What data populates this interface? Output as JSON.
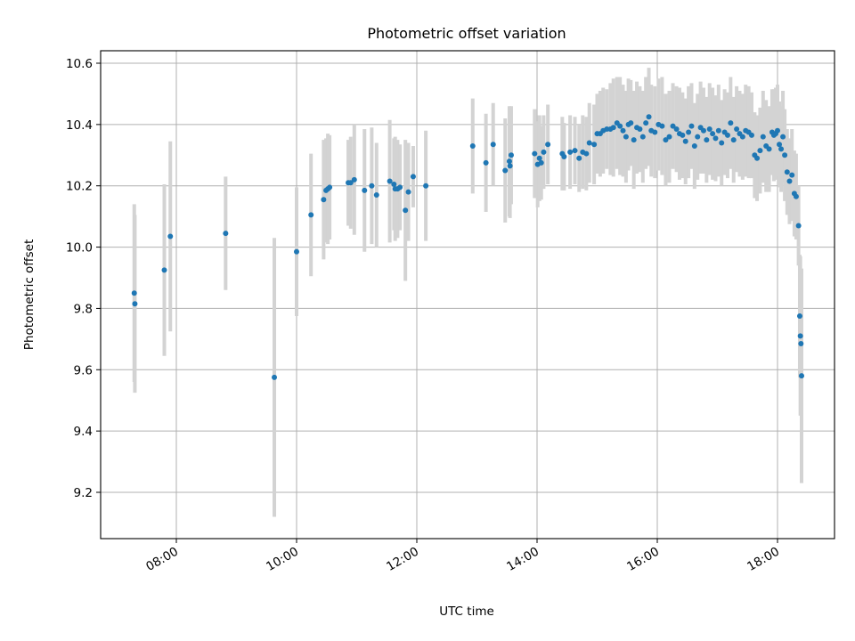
{
  "chart_data": {
    "type": "scatter",
    "title": "Photometric offset variation",
    "xlabel": "UTC time",
    "ylabel": "Photometric offset",
    "x_unit": "hours UTC",
    "xlim": [
      7.0,
      19.0
    ],
    "ylim": [
      9.05,
      10.64
    ],
    "xticks": [
      {
        "value": 8,
        "label": "08:00"
      },
      {
        "value": 10,
        "label": "10:00"
      },
      {
        "value": 12,
        "label": "12:00"
      },
      {
        "value": 14,
        "label": "14:00"
      },
      {
        "value": 16,
        "label": "16:00"
      },
      {
        "value": 18,
        "label": "18:00"
      }
    ],
    "yticks": [
      {
        "value": 9.2,
        "label": "9.2"
      },
      {
        "value": 9.4,
        "label": "9.4"
      },
      {
        "value": 9.6,
        "label": "9.6"
      },
      {
        "value": 9.8,
        "label": "9.8"
      },
      {
        "value": 10.0,
        "label": "10.0"
      },
      {
        "value": 10.2,
        "label": "10.2"
      },
      {
        "value": 10.4,
        "label": "10.4"
      },
      {
        "value": 10.6,
        "label": "10.6"
      }
    ],
    "grid": true,
    "legend": "none",
    "colors": {
      "points": "#1f77b4",
      "errorbars": "#d3d3d3"
    },
    "series": [
      {
        "x": [
          7.3,
          7.31,
          7.8,
          7.9,
          8.82,
          9.63,
          10.0,
          10.24,
          10.45,
          10.49,
          10.52,
          10.55,
          10.86,
          10.9,
          10.96,
          11.13,
          11.25,
          11.33,
          11.55,
          11.62,
          11.64,
          11.68,
          11.72,
          11.81,
          11.86,
          11.94,
          12.15,
          12.93,
          13.15,
          13.27,
          13.47,
          13.54,
          13.55,
          13.57,
          13.96,
          14.01,
          14.04,
          14.07,
          14.11,
          14.18,
          14.42,
          14.45,
          14.55,
          14.63,
          14.7,
          14.76,
          14.82,
          14.87,
          14.95,
          15.0,
          15.05,
          15.1,
          15.16,
          15.22,
          15.27,
          15.33,
          15.38,
          15.43,
          15.48,
          15.52,
          15.56,
          15.61,
          15.66,
          15.71,
          15.76,
          15.81,
          15.86,
          15.9,
          15.96,
          16.02,
          16.08,
          16.14,
          16.2,
          16.26,
          16.32,
          16.37,
          16.42,
          16.47,
          16.52,
          16.57,
          16.62,
          16.67,
          16.72,
          16.77,
          16.82,
          16.87,
          16.92,
          16.97,
          17.02,
          17.07,
          17.12,
          17.17,
          17.22,
          17.27,
          17.32,
          17.37,
          17.42,
          17.47,
          17.52,
          17.57,
          17.62,
          17.66,
          17.71,
          17.76,
          17.81,
          17.86,
          17.91,
          17.94,
          17.97,
          18.0,
          18.03,
          18.06,
          18.09,
          18.12,
          18.16,
          18.2,
          18.24,
          18.28,
          18.31,
          18.35,
          18.37,
          18.38,
          18.39,
          18.4
        ],
        "y": [
          9.85,
          9.815,
          9.925,
          10.035,
          10.045,
          9.575,
          9.985,
          10.105,
          10.155,
          10.185,
          10.19,
          10.195,
          10.21,
          10.21,
          10.22,
          10.185,
          10.2,
          10.17,
          10.215,
          10.205,
          10.19,
          10.19,
          10.195,
          10.12,
          10.18,
          10.23,
          10.2,
          10.33,
          10.275,
          10.335,
          10.25,
          10.28,
          10.265,
          10.3,
          10.305,
          10.27,
          10.29,
          10.275,
          10.31,
          10.335,
          10.305,
          10.295,
          10.31,
          10.315,
          10.29,
          10.31,
          10.305,
          10.34,
          10.335,
          10.37,
          10.37,
          10.38,
          10.385,
          10.385,
          10.39,
          10.405,
          10.395,
          10.38,
          10.36,
          10.4,
          10.405,
          10.35,
          10.39,
          10.385,
          10.36,
          10.405,
          10.425,
          10.38,
          10.375,
          10.4,
          10.395,
          10.35,
          10.36,
          10.395,
          10.385,
          10.37,
          10.365,
          10.345,
          10.375,
          10.395,
          10.33,
          10.36,
          10.39,
          10.38,
          10.35,
          10.385,
          10.37,
          10.355,
          10.38,
          10.34,
          10.375,
          10.365,
          10.405,
          10.35,
          10.385,
          10.37,
          10.36,
          10.38,
          10.375,
          10.365,
          10.3,
          10.29,
          10.315,
          10.36,
          10.33,
          10.32,
          10.375,
          10.365,
          10.37,
          10.38,
          10.335,
          10.32,
          10.36,
          10.3,
          10.245,
          10.215,
          10.235,
          10.175,
          10.165,
          10.07,
          9.775,
          9.71,
          9.685,
          9.58
        ],
        "yerr": [
          0.29,
          0.29,
          0.28,
          0.31,
          0.185,
          0.455,
          0.21,
          0.2,
          0.195,
          0.17,
          0.18,
          0.17,
          0.14,
          0.15,
          0.18,
          0.2,
          0.19,
          0.17,
          0.2,
          0.15,
          0.17,
          0.16,
          0.14,
          0.23,
          0.16,
          0.1,
          0.18,
          0.155,
          0.16,
          0.135,
          0.17,
          0.18,
          0.17,
          0.16,
          0.145,
          0.14,
          0.14,
          0.12,
          0.12,
          0.13,
          0.12,
          0.11,
          0.12,
          0.11,
          0.11,
          0.12,
          0.12,
          0.13,
          0.13,
          0.13,
          0.14,
          0.14,
          0.13,
          0.15,
          0.16,
          0.15,
          0.16,
          0.15,
          0.15,
          0.15,
          0.14,
          0.16,
          0.15,
          0.14,
          0.15,
          0.15,
          0.16,
          0.15,
          0.15,
          0.15,
          0.16,
          0.15,
          0.15,
          0.14,
          0.14,
          0.15,
          0.14,
          0.14,
          0.15,
          0.14,
          0.14,
          0.14,
          0.15,
          0.14,
          0.14,
          0.15,
          0.15,
          0.14,
          0.15,
          0.14,
          0.14,
          0.14,
          0.15,
          0.14,
          0.14,
          0.14,
          0.14,
          0.15,
          0.15,
          0.14,
          0.14,
          0.14,
          0.14,
          0.15,
          0.15,
          0.14,
          0.14,
          0.15,
          0.15,
          0.15,
          0.14,
          0.14,
          0.15,
          0.15,
          0.14,
          0.14,
          0.15,
          0.14,
          0.14,
          0.13,
          0.2,
          0.26,
          0.2,
          0.35
        ]
      }
    ]
  }
}
